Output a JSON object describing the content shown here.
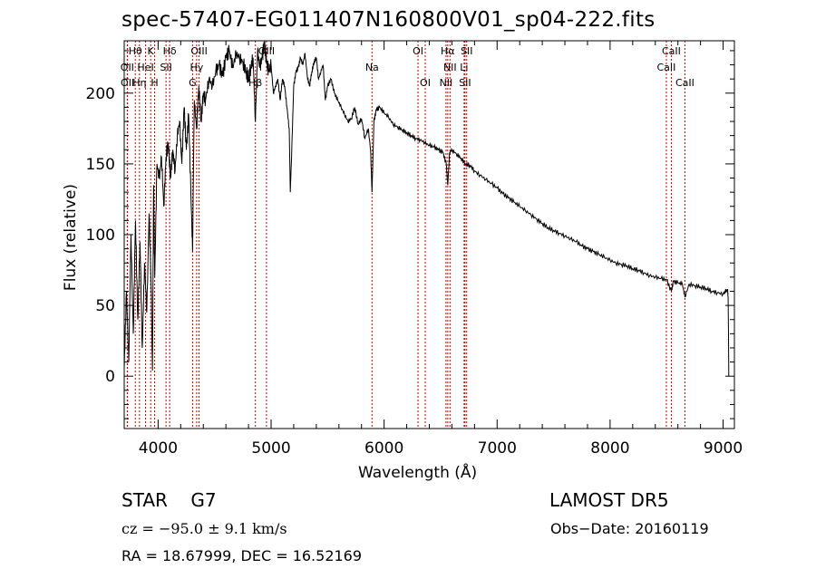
{
  "header": {
    "title": "spec-57407-EG011407N160800V01_sp04-222.fits"
  },
  "info": {
    "object_class": "STAR",
    "subclass": "G7",
    "survey": "LAMOST DR5",
    "cz": "cz = −95.0 ± 9.1 km/s",
    "obs_date": "Obs−Date: 20160119",
    "radec": "RA =  18.67999, DEC =  16.52169"
  },
  "chart_data": {
    "type": "line",
    "xlabel": "Wavelength (Å)",
    "ylabel": "Flux (relative)",
    "xlim": [
      3700,
      9100
    ],
    "ylim": [
      -37,
      237
    ],
    "xticks": [
      4000,
      5000,
      6000,
      7000,
      8000,
      9000
    ],
    "yticks": [
      0,
      50,
      100,
      150,
      200
    ],
    "grid": false,
    "series": [
      {
        "x": [
          3700,
          3720,
          3740,
          3760,
          3780,
          3800,
          3820,
          3840,
          3860,
          3880,
          3900,
          3920,
          3940,
          3950,
          3960,
          3970,
          3990,
          4010,
          4030,
          4050,
          4070,
          4090,
          4110,
          4130,
          4150,
          4170,
          4190,
          4210,
          4230,
          4250,
          4270,
          4290,
          4305,
          4320,
          4340,
          4360,
          4380,
          4400,
          4420,
          4450,
          4480,
          4510,
          4540,
          4570,
          4600,
          4630,
          4660,
          4690,
          4720,
          4750,
          4780,
          4800,
          4820,
          4840,
          4861,
          4880,
          4900,
          4920,
          4940,
          4960,
          4980,
          5000,
          5020,
          5040,
          5060,
          5080,
          5100,
          5120,
          5140,
          5160,
          5170,
          5183,
          5200,
          5220,
          5240,
          5260,
          5280,
          5300,
          5320,
          5340,
          5360,
          5380,
          5400,
          5420,
          5440,
          5460,
          5480,
          5500,
          5530,
          5560,
          5590,
          5620,
          5650,
          5680,
          5710,
          5740,
          5770,
          5800,
          5830,
          5860,
          5880,
          5893,
          5910,
          5930,
          5960,
          6000,
          6040,
          6080,
          6120,
          6160,
          6200,
          6240,
          6280,
          6320,
          6360,
          6400,
          6440,
          6480,
          6520,
          6550,
          6563,
          6580,
          6600,
          6640,
          6680,
          6720,
          6760,
          6800,
          6850,
          6900,
          6950,
          7000,
          7050,
          7100,
          7150,
          7200,
          7250,
          7300,
          7350,
          7400,
          7450,
          7500,
          7550,
          7600,
          7650,
          7700,
          7750,
          7800,
          7850,
          7900,
          7950,
          8000,
          8050,
          8100,
          8150,
          8200,
          8250,
          8300,
          8350,
          8400,
          8450,
          8500,
          8542,
          8560,
          8600,
          8640,
          8662,
          8700,
          8750,
          8800,
          8850,
          8900,
          8950,
          9000,
          9020,
          9040,
          9045,
          9050
        ],
        "y": [
          5,
          60,
          10,
          100,
          30,
          110,
          40,
          95,
          20,
          80,
          45,
          115,
          60,
          4,
          135,
          70,
          150,
          140,
          155,
          120,
          155,
          165,
          140,
          160,
          145,
          170,
          180,
          150,
          190,
          160,
          185,
          130,
          88,
          195,
          175,
          205,
          180,
          200,
          195,
          210,
          205,
          215,
          220,
          212,
          225,
          230,
          218,
          228,
          225,
          222,
          215,
          210,
          218,
          225,
          180,
          230,
          218,
          225,
          235,
          222,
          215,
          220,
          200,
          205,
          210,
          195,
          210,
          205,
          190,
          175,
          130,
          160,
          205,
          215,
          218,
          225,
          220,
          228,
          212,
          205,
          215,
          222,
          225,
          210,
          215,
          220,
          195,
          205,
          210,
          200,
          195,
          190,
          185,
          180,
          182,
          190,
          178,
          182,
          168,
          175,
          160,
          130,
          180,
          188,
          190,
          186,
          183,
          178,
          176,
          174,
          172,
          170,
          168,
          167,
          165,
          163,
          162,
          160,
          158,
          150,
          135,
          158,
          160,
          157,
          154,
          150,
          149,
          145,
          142,
          139,
          136,
          133,
          129,
          126,
          123,
          120,
          117,
          114,
          111,
          108,
          105,
          103,
          101,
          99,
          97,
          95,
          92,
          90,
          88,
          86,
          84,
          82,
          80,
          79,
          78,
          76,
          75,
          73,
          71,
          70,
          69,
          68,
          60,
          67,
          66,
          65,
          56,
          65,
          64,
          63,
          62,
          60,
          59,
          58,
          60,
          61,
          55,
          0
        ]
      }
    ],
    "line_marker_color": "#cc0000",
    "line_markers": [
      {
        "label": "Hθ",
        "x": 3798,
        "row": 0
      },
      {
        "label": "K",
        "x": 3934,
        "row": 0
      },
      {
        "label": "Hδ",
        "x": 4102,
        "row": 0
      },
      {
        "label": "OIII",
        "x": 4363,
        "row": 0
      },
      {
        "label": "OIII",
        "x": 4959,
        "row": 0
      },
      {
        "label": "OI",
        "x": 6300,
        "row": 0
      },
      {
        "label": "Hα",
        "x": 6563,
        "row": 0
      },
      {
        "label": "SII",
        "x": 6731,
        "row": 0
      },
      {
        "label": "CaII",
        "x": 8542,
        "row": 0
      },
      {
        "label": "OII",
        "x": 3727,
        "row": 1
      },
      {
        "label": "HeI",
        "x": 3889,
        "row": 1
      },
      {
        "label": "SII",
        "x": 4070,
        "row": 1
      },
      {
        "label": "Hγ",
        "x": 4341,
        "row": 1
      },
      {
        "label": "NII",
        "x": 6583,
        "row": 1
      },
      {
        "label": "Li",
        "x": 6708,
        "row": 1
      },
      {
        "label": "Na",
        "x": 5893,
        "row": 1
      },
      {
        "label": "CaII",
        "x": 8498,
        "row": 1
      },
      {
        "label": "OII",
        "x": 3729,
        "row": 2
      },
      {
        "label": "Hη",
        "x": 3835,
        "row": 2
      },
      {
        "label": "H",
        "x": 3969,
        "row": 2
      },
      {
        "label": "G",
        "x": 4305,
        "row": 2
      },
      {
        "label": "Hβ",
        "x": 4861,
        "row": 2
      },
      {
        "label": "OI",
        "x": 6364,
        "row": 2
      },
      {
        "label": "NII",
        "x": 6548,
        "row": 2
      },
      {
        "label": "SII",
        "x": 6716,
        "row": 2
      },
      {
        "label": "CaII",
        "x": 8662,
        "row": 2
      }
    ]
  }
}
